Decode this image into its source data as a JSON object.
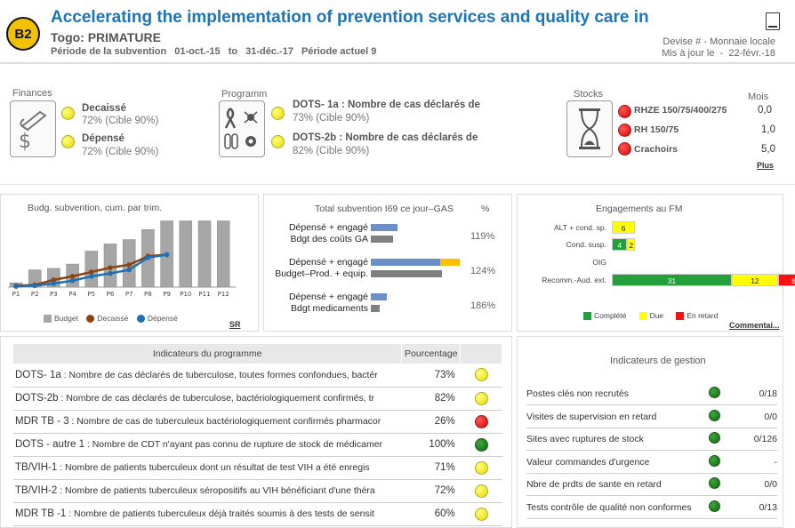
{
  "header": {
    "badge": "B2",
    "title": "Accelerating the implementation of prevention services and quality care in",
    "country": "Togo: PRIMATURE",
    "period_label": "Période de la subvention",
    "period_start": "01-oct.-15",
    "period_to": "to",
    "period_end": "31-déc.-17",
    "current_period": "Période actuel 9",
    "currency": "Devise # - Monnaie locale",
    "updated_label": "Mis à jour le",
    "updated_sep": "-",
    "updated_date": "22-févr.-18"
  },
  "finances": {
    "label": "Finances",
    "icon": "money-icon",
    "items": [
      {
        "title": "Decaissé",
        "value": "72% (Cible 90%)",
        "status": "yellow"
      },
      {
        "title": "Dépensé",
        "value": "72% (Cible 90%)",
        "status": "yellow"
      }
    ]
  },
  "programme": {
    "label": "Programm",
    "icon": "health-icons",
    "items": [
      {
        "title": "DOTS- 1a : Nombre de cas déclarés de",
        "value": "73% (Cible 90%)",
        "status": "yellow"
      },
      {
        "title": "DOTS-2b : Nombre de cas déclarés de",
        "value": "82% (Cible 90%)",
        "status": "yellow"
      }
    ]
  },
  "stocks": {
    "label": "Stocks",
    "icon": "hourglass-icon",
    "months_label": "Mois",
    "more": "Plus",
    "items": [
      {
        "name": "RHZE 150/75/400/275",
        "value": "0,0",
        "status": "red"
      },
      {
        "name": "RH 150/75",
        "value": "1,0",
        "status": "red"
      },
      {
        "name": "Crachoirs",
        "value": "5,0",
        "status": "red"
      }
    ]
  },
  "budget_chart": {
    "title": "Budg. subvention, cum. par trim.",
    "sr": "SR",
    "legend": [
      "Budget",
      "Decaissé",
      "Dépensé"
    ],
    "colors": {
      "budget": "#a6a6a6",
      "decaisse": "#8b4513",
      "depense": "#1f6fb5"
    }
  },
  "chart_data": {
    "type": "bar",
    "categories": [
      "P1",
      "P2",
      "P3",
      "P4",
      "P5",
      "P6",
      "P7",
      "P8",
      "P9",
      "P10",
      "P11",
      "P12"
    ],
    "ylim": [
      0,
      100
    ],
    "series": [
      {
        "name": "Budget",
        "values": [
          6,
          24,
          26,
          32,
          50,
          60,
          66,
          80,
          92,
          92,
          92,
          92
        ]
      },
      {
        "name": "Decaissé",
        "values": [
          2,
          3,
          10,
          15,
          21,
          27,
          31,
          43,
          45,
          null,
          null,
          null
        ]
      },
      {
        "name": "Dépensé",
        "values": [
          1,
          2,
          5,
          9,
          15,
          19,
          24,
          41,
          45,
          null,
          null,
          null
        ]
      }
    ]
  },
  "total_chart": {
    "title": "Total subvention I69 ce jour–GAS",
    "pct_header": "%",
    "rows": [
      {
        "l1": "Dépensé + engagé",
        "l2": "Bdgt des coûts GA",
        "bar1": 30,
        "bar1b": 0,
        "bar2": 25,
        "pct": "119%"
      },
      {
        "l1": "Dépensé + engagé",
        "l2": "Budget–Prod. + equip.",
        "bar1": 78,
        "bar1b": 22,
        "bar2": 80,
        "pct": "124%"
      },
      {
        "l1": "Dépensé + engagé",
        "l2": "Bdgt medicaments",
        "bar1": 18,
        "bar1b": 0,
        "bar2": 10,
        "pct": "186%"
      }
    ]
  },
  "engagements": {
    "title": "Engagements au FM",
    "comment": "Commentai...",
    "rows": [
      {
        "label": "ALT + cond. sp.",
        "complete": 0,
        "due": 6,
        "late": 0
      },
      {
        "label": "Cond. susp.",
        "complete": 4,
        "due": 2,
        "late": 0
      },
      {
        "label": "OIG",
        "complete": 0,
        "due": 0,
        "late": 0
      },
      {
        "label": "Recomm.-Aud. ext.",
        "complete": 31,
        "due": 12,
        "late": 8
      }
    ],
    "legend": [
      "Complété",
      "Due",
      "En retard"
    ],
    "colors": {
      "complete": "#22a03c",
      "due": "#ffff00",
      "late": "#ff1010"
    }
  },
  "indicators": {
    "headers": [
      "Indicateurs du programme",
      "Pourcentage",
      ""
    ],
    "rows": [
      {
        "code": "DOTS- 1a",
        "text": " : Nombre de cas déclarés de tuberculose, toutes formes confondues, bactér",
        "pct": "73%",
        "status": "yellow"
      },
      {
        "code": "DOTS-2b",
        "text": " : Nombre de cas déclarés de tuberculose, bactériologiquement confirmés, tr",
        "pct": "82%",
        "status": "yellow"
      },
      {
        "code": "MDR TB - 3",
        "text": " : Nombre de cas de tuberculeux bactériologiquement confirmés pharmacor",
        "pct": "26%",
        "status": "red"
      },
      {
        "code": "DOTS - autre 1",
        "text": " : Nombre de CDT n'ayant pas connu de rupture de stock de médicamer",
        "pct": "100%",
        "status": "green"
      },
      {
        "code": "TB/VIH-1",
        "text": " : Nombre de patients tuberculeux dont un résultat de test VIH a été enregis",
        "pct": "71%",
        "status": "yellow"
      },
      {
        "code": "TB/VIH-2",
        "text": " : Nombre de patients tuberculeux séropositifs au VIH bénéficiant d'une théra",
        "pct": "72%",
        "status": "yellow"
      },
      {
        "code": "MDR TB -1",
        "text": " : Nombre de patients tuberculeux déjà traités soumis à des tests de sensit",
        "pct": "60%",
        "status": "yellow"
      }
    ]
  },
  "gestion": {
    "title": "Indicateurs de gestion",
    "rows": [
      {
        "label": "Postes clés non recrutés",
        "value": "0/18",
        "status": "green"
      },
      {
        "label": "Visites de supervision en retard",
        "value": "0/0",
        "status": "green"
      },
      {
        "label": "Sites avec ruptures de stock",
        "value": "0/126",
        "status": "green"
      },
      {
        "label": "Valeur commandes d'urgence",
        "value": "-",
        "status": "green"
      },
      {
        "label": "Nbre de prdts de sante en retard",
        "value": "0/0",
        "status": "green"
      },
      {
        "label": "Tests contrôle de qualité non conformes",
        "value": "0/13",
        "status": "green"
      }
    ]
  }
}
